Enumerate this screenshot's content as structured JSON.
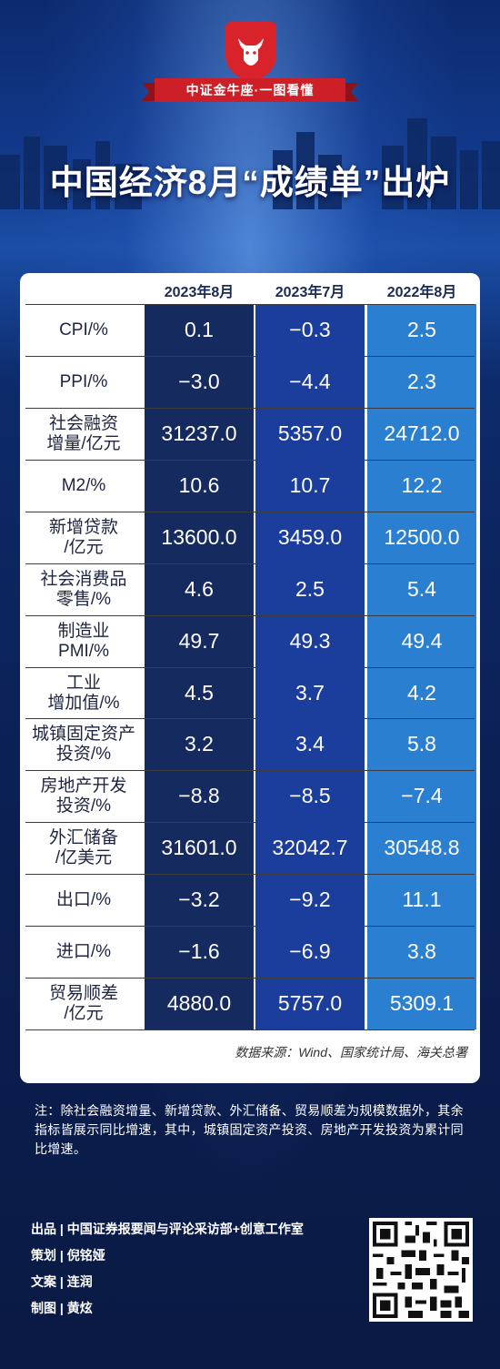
{
  "brand": {
    "ribbon": "中证金牛座·一图看懂"
  },
  "title": "中国经济8月“成绩单”出炉",
  "table": {
    "columns": [
      "2023年8月",
      "2023年7月",
      "2022年8月"
    ],
    "rows": [
      {
        "label": "CPI/%",
        "values": [
          "0.1",
          "−0.3",
          "2.5"
        ]
      },
      {
        "label": "PPI/%",
        "values": [
          "−3.0",
          "−4.4",
          "2.3"
        ]
      },
      {
        "label": "社会融资\n增量/亿元",
        "values": [
          "31237.0",
          "5357.0",
          "24712.0"
        ]
      },
      {
        "label": "M2/%",
        "values": [
          "10.6",
          "10.7",
          "12.2"
        ]
      },
      {
        "label": "新增贷款\n/亿元",
        "values": [
          "13600.0",
          "3459.0",
          "12500.0"
        ]
      },
      {
        "label": "社会消费品\n零售/%",
        "values": [
          "4.6",
          "2.5",
          "5.4"
        ]
      },
      {
        "label": "制造业\nPMI/%",
        "values": [
          "49.7",
          "49.3",
          "49.4"
        ]
      },
      {
        "label": "工业\n增加值/%",
        "values": [
          "4.5",
          "3.7",
          "4.2"
        ]
      },
      {
        "label": "城镇固定资产\n投资/%",
        "values": [
          "3.2",
          "3.4",
          "5.8"
        ]
      },
      {
        "label": "房地产开发\n投资/%",
        "values": [
          "−8.8",
          "−8.5",
          "−7.4"
        ]
      },
      {
        "label": "外汇储备\n/亿美元",
        "values": [
          "31601.0",
          "32042.7",
          "30548.8"
        ]
      },
      {
        "label": "出口/%",
        "values": [
          "−3.2",
          "−9.2",
          "11.1"
        ]
      },
      {
        "label": "进口/%",
        "values": [
          "−1.6",
          "−6.9",
          "3.8"
        ]
      },
      {
        "label": "贸易顺差\n/亿元",
        "values": [
          "4880.0",
          "5757.0",
          "5309.1"
        ]
      }
    ],
    "column_colors": [
      "#152a5e",
      "#1b3d9c",
      "#2a7fd0"
    ]
  },
  "source": "数据来源：Wind、国家统计局、海关总署",
  "note": "注：除社会融资增量、新增贷款、外汇储备、贸易顺差为规模数据外，其余指标皆展示同比增速，其中，城镇固定资产投资、房地产开发投资为累计同比增速。",
  "credits": [
    "出品 | 中国证券报要闻与评论采访部+创意工作室",
    "策划 | 倪铭娅",
    "文案 | 连润",
    "制图 | 黄炫"
  ]
}
